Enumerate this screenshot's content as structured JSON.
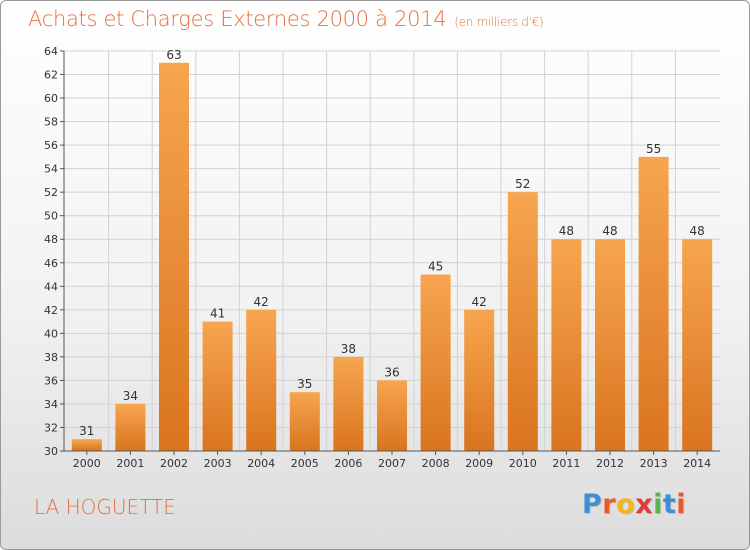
{
  "title": "Achats et Charges Externes 2000 à 2014",
  "subtitle": "(en milliers d'€)",
  "location": "LA HOGUETTE",
  "logo": {
    "text": "Proxiti",
    "letters": [
      {
        "char": "P",
        "color": "#3a8fd6"
      },
      {
        "char": "r",
        "color": "#e85a2a"
      },
      {
        "char": "o",
        "color": "#f2b51c"
      },
      {
        "char": "x",
        "color": "#e03a3a"
      },
      {
        "char": "i",
        "color": "#5ab54a"
      },
      {
        "char": "t",
        "color": "#3a8fd6"
      },
      {
        "char": "i",
        "color": "#e85a2a"
      }
    ]
  },
  "colors": {
    "bar_light": "#f7a54f",
    "bar_dark": "#d9741f",
    "title": "#e2713f",
    "grid": "#d2d2d2",
    "axis": "#555555"
  },
  "chart_data": {
    "type": "bar",
    "categories": [
      "2000",
      "2001",
      "2002",
      "2003",
      "2004",
      "2005",
      "2006",
      "2007",
      "2008",
      "2009",
      "2010",
      "2011",
      "2012",
      "2013",
      "2014"
    ],
    "values": [
      31,
      34,
      63,
      41,
      42,
      35,
      38,
      36,
      45,
      42,
      52,
      48,
      48,
      55,
      48
    ],
    "title": "Achats et Charges Externes 2000 à 2014",
    "xlabel": "",
    "ylabel": "",
    "ylim": [
      30,
      64
    ],
    "yticks": [
      30,
      32,
      34,
      36,
      38,
      40,
      42,
      44,
      46,
      48,
      50,
      52,
      54,
      56,
      58,
      60,
      62,
      64
    ],
    "grid": true,
    "data_labels": true
  }
}
